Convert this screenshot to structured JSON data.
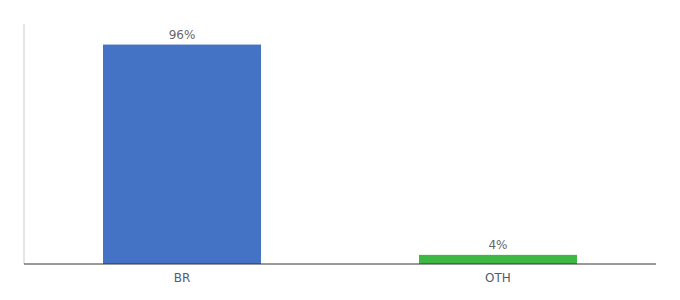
{
  "chart_data": {
    "type": "bar",
    "categories": [
      "BR",
      "OTH"
    ],
    "values": [
      96,
      4
    ],
    "value_labels": [
      "96%",
      "4%"
    ],
    "colors": [
      "#4472c4",
      "#3db843"
    ],
    "ylim": [
      0,
      105
    ],
    "data_labels": true,
    "tick_labels": "x",
    "grid": false
  }
}
